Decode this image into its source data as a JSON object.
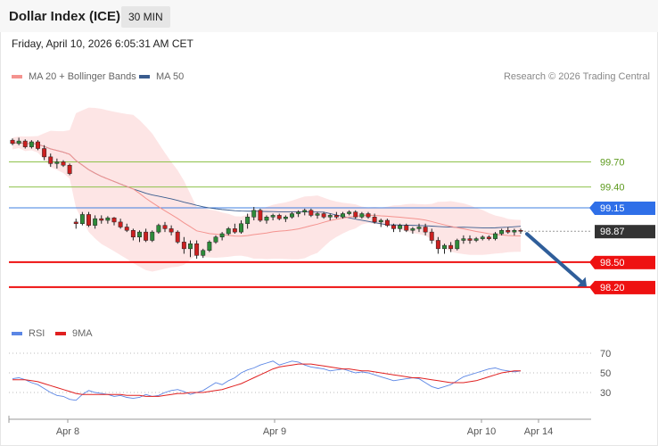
{
  "header": {
    "title": "Dollar Index (ICE)",
    "interval": "30 MIN",
    "datetime": "Friday, April 10, 2026 6:05:31 AM CET",
    "copyright": "Research © 2026 Trading Central"
  },
  "legend": {
    "ma20": "MA 20 + Bollinger Bands",
    "ma50": "MA 50",
    "rsi": "RSI",
    "rsi_ma": "9MA"
  },
  "colors": {
    "ma20": "#f4938f",
    "ma50": "#3a5c8e",
    "band": "#fde0e0",
    "up": "#2e8b3a",
    "down": "#cc1f1f",
    "support": "#ee1111",
    "resistance_green": "#8ec24b",
    "resistance_blue": "#3f7fe0",
    "arrow": "#2f5e9a",
    "rsi": "#5b86e5",
    "rsi_ma": "#e02020"
  },
  "chart_data": [
    {
      "type": "candlestick",
      "ylim": [
        97.9,
        100.25
      ],
      "x_ticks": [
        "Apr 8",
        "Apr 9",
        "Apr 10",
        "Apr 14"
      ],
      "levels": [
        {
          "value": 99.7,
          "label": "99.70",
          "style": "resistance_green"
        },
        {
          "value": 99.4,
          "label": "99.40",
          "style": "resistance_green"
        },
        {
          "value": 99.15,
          "label": "99.15",
          "style": "resistance_blue"
        },
        {
          "value": 98.87,
          "label": "98.87",
          "style": "last_price"
        },
        {
          "value": 98.5,
          "label": "98.50",
          "style": "support"
        },
        {
          "value": 98.2,
          "label": "98.20",
          "style": "support"
        }
      ],
      "projection": {
        "from": 98.87,
        "to": 98.2,
        "direction": "down"
      },
      "candles": [
        [
          99.96,
          99.98,
          99.9,
          99.92
        ],
        [
          99.92,
          99.99,
          99.9,
          99.95
        ],
        [
          99.95,
          99.97,
          99.86,
          99.88
        ],
        [
          99.88,
          99.96,
          99.86,
          99.94
        ],
        [
          99.94,
          99.96,
          99.84,
          99.86
        ],
        [
          99.86,
          99.9,
          99.72,
          99.76
        ],
        [
          99.76,
          99.8,
          99.64,
          99.68
        ],
        [
          99.68,
          99.74,
          99.62,
          99.7
        ],
        [
          99.7,
          99.72,
          99.64,
          99.66
        ],
        [
          99.66,
          99.68,
          99.54,
          99.56
        ],
        [
          98.98,
          99.02,
          98.9,
          98.96
        ],
        [
          98.96,
          99.1,
          98.94,
          99.07
        ],
        [
          99.07,
          99.1,
          98.92,
          98.94
        ],
        [
          98.94,
          99.06,
          98.9,
          99.02
        ],
        [
          99.02,
          99.06,
          98.96,
          99.0
        ],
        [
          99.0,
          99.05,
          98.96,
          99.03
        ],
        [
          99.03,
          99.04,
          98.94,
          98.98
        ],
        [
          98.98,
          99.02,
          98.9,
          98.92
        ],
        [
          98.92,
          98.96,
          98.86,
          98.88
        ],
        [
          98.88,
          98.9,
          98.76,
          98.8
        ],
        [
          98.8,
          98.88,
          98.74,
          98.86
        ],
        [
          98.86,
          98.9,
          98.74,
          98.76
        ],
        [
          98.76,
          98.88,
          98.74,
          98.86
        ],
        [
          98.86,
          98.96,
          98.84,
          98.94
        ],
        [
          98.94,
          98.98,
          98.86,
          98.9
        ],
        [
          98.9,
          98.94,
          98.82,
          98.86
        ],
        [
          98.86,
          98.88,
          98.72,
          98.74
        ],
        [
          98.74,
          98.8,
          98.6,
          98.66
        ],
        [
          98.66,
          98.76,
          98.56,
          98.72
        ],
        [
          98.72,
          98.76,
          98.54,
          98.58
        ],
        [
          98.58,
          98.66,
          98.55,
          98.64
        ],
        [
          98.64,
          98.76,
          98.62,
          98.74
        ],
        [
          98.74,
          98.82,
          98.72,
          98.8
        ],
        [
          98.8,
          98.86,
          98.76,
          98.84
        ],
        [
          98.84,
          98.92,
          98.82,
          98.9
        ],
        [
          98.9,
          98.96,
          98.84,
          98.86
        ],
        [
          98.86,
          99.0,
          98.84,
          98.96
        ],
        [
          98.96,
          99.08,
          98.9,
          99.04
        ],
        [
          99.04,
          99.16,
          99.0,
          99.12
        ],
        [
          99.12,
          99.14,
          98.98,
          99.0
        ],
        [
          99.0,
          99.06,
          98.96,
          99.04
        ],
        [
          99.04,
          99.08,
          99.0,
          99.06
        ],
        [
          99.06,
          99.08,
          99.0,
          99.02
        ],
        [
          99.02,
          99.06,
          98.98,
          99.04
        ],
        [
          99.04,
          99.1,
          99.02,
          99.08
        ],
        [
          99.08,
          99.12,
          99.04,
          99.1
        ],
        [
          99.1,
          99.14,
          99.06,
          99.12
        ],
        [
          99.12,
          99.14,
          99.04,
          99.06
        ],
        [
          99.06,
          99.1,
          99.02,
          99.08
        ],
        [
          99.08,
          99.1,
          99.02,
          99.04
        ],
        [
          99.04,
          99.08,
          99.0,
          99.06
        ],
        [
          99.06,
          99.1,
          99.02,
          99.04
        ],
        [
          99.04,
          99.1,
          99.02,
          99.08
        ],
        [
          99.08,
          99.12,
          99.06,
          99.1
        ],
        [
          99.1,
          99.12,
          99.02,
          99.04
        ],
        [
          99.04,
          99.1,
          99.02,
          99.08
        ],
        [
          99.08,
          99.1,
          99.02,
          99.04
        ],
        [
          99.04,
          99.08,
          98.96,
          98.98
        ],
        [
          98.98,
          99.02,
          98.92,
          99.0
        ],
        [
          99.0,
          99.02,
          98.92,
          98.94
        ],
        [
          98.94,
          98.96,
          98.86,
          98.9
        ],
        [
          98.9,
          98.96,
          98.86,
          98.94
        ],
        [
          98.94,
          98.96,
          98.86,
          98.88
        ],
        [
          98.88,
          98.92,
          98.84,
          98.9
        ],
        [
          98.9,
          98.96,
          98.86,
          98.92
        ],
        [
          98.92,
          98.96,
          98.82,
          98.86
        ],
        [
          98.86,
          98.9,
          98.72,
          98.76
        ],
        [
          98.76,
          98.8,
          98.6,
          98.66
        ],
        [
          98.66,
          98.72,
          98.6,
          98.7
        ],
        [
          98.7,
          98.74,
          98.62,
          98.66
        ],
        [
          98.66,
          98.78,
          98.64,
          98.76
        ],
        [
          98.76,
          98.82,
          98.72,
          98.78
        ],
        [
          98.78,
          98.82,
          98.72,
          98.76
        ],
        [
          98.76,
          98.8,
          98.74,
          98.78
        ],
        [
          98.78,
          98.82,
          98.76,
          98.8
        ],
        [
          98.8,
          98.82,
          98.76,
          98.78
        ],
        [
          98.78,
          98.86,
          98.76,
          98.84
        ],
        [
          98.84,
          98.9,
          98.82,
          98.88
        ],
        [
          98.88,
          98.92,
          98.84,
          98.86
        ],
        [
          98.86,
          98.9,
          98.82,
          98.88
        ],
        [
          98.88,
          98.9,
          98.84,
          98.87
        ]
      ]
    },
    {
      "type": "line",
      "title": "RSI",
      "ylim": [
        0,
        100
      ],
      "y_ticks": [
        70,
        50,
        30
      ],
      "series": [
        {
          "name": "RSI",
          "values": [
            44,
            45,
            43,
            40,
            38,
            34,
            30,
            27,
            26,
            23,
            22,
            28,
            32,
            30,
            29,
            28,
            26,
            27,
            25,
            24,
            25,
            28,
            26,
            27,
            30,
            32,
            33,
            31,
            28,
            30,
            32,
            36,
            40,
            38,
            42,
            45,
            50,
            53,
            55,
            58,
            60,
            62,
            58,
            60,
            62,
            61,
            58,
            56,
            55,
            54,
            52,
            53,
            54,
            52,
            50,
            51,
            50,
            48,
            46,
            44,
            42,
            43,
            44,
            45,
            44,
            40,
            36,
            34,
            36,
            38,
            42,
            46,
            48,
            50,
            52,
            54,
            55,
            53,
            52,
            51,
            52
          ]
        },
        {
          "name": "9MA",
          "values": [
            43,
            43,
            43,
            42,
            41,
            39,
            37,
            35,
            33,
            31,
            29,
            28,
            28,
            28,
            28,
            28,
            28,
            28,
            27,
            27,
            27,
            26,
            26,
            26,
            27,
            28,
            29,
            29,
            30,
            30,
            30,
            31,
            32,
            33,
            35,
            37,
            39,
            42,
            45,
            48,
            51,
            54,
            56,
            57,
            58,
            59,
            59,
            59,
            58,
            57,
            56,
            55,
            54,
            54,
            53,
            52,
            52,
            51,
            50,
            49,
            48,
            47,
            46,
            45,
            45,
            44,
            43,
            42,
            41,
            40,
            40,
            40,
            41,
            42,
            44,
            46,
            48,
            50,
            51,
            52,
            52
          ]
        }
      ]
    }
  ]
}
